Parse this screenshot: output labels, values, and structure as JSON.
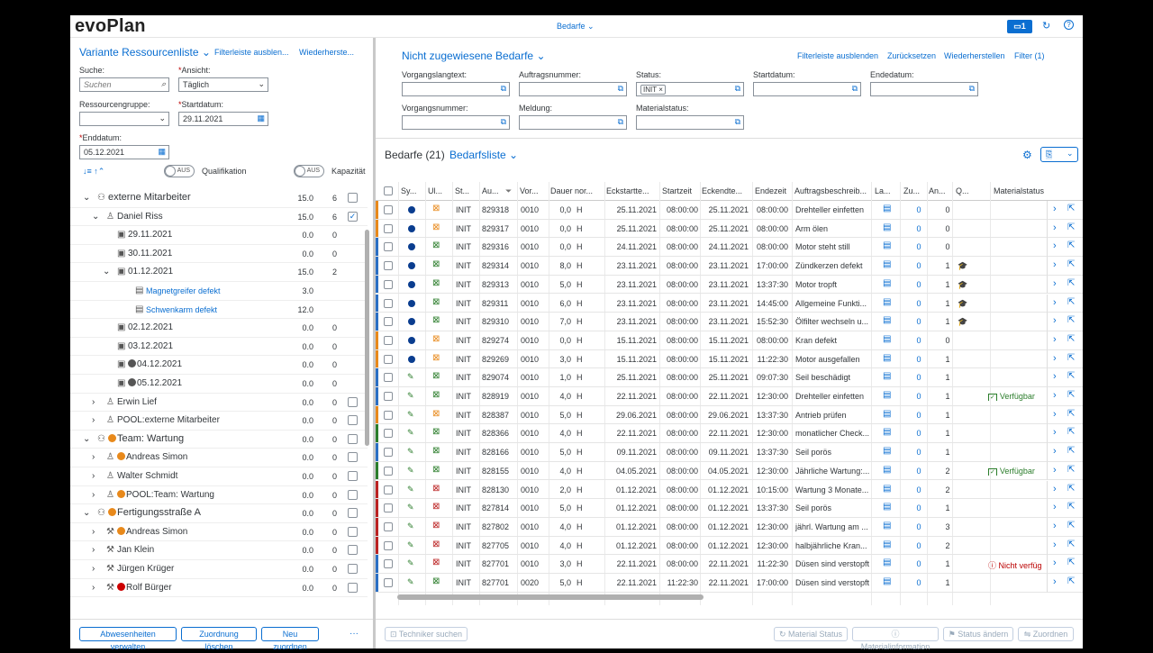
{
  "shell": {
    "logo": "evoPlan",
    "title": "Bedarfe",
    "notif_count": "1",
    "icons": [
      "notification-icon",
      "refresh-icon",
      "help-icon"
    ]
  },
  "left": {
    "variant": "Variante Ressourcenliste",
    "hide_filter": "Filterleiste ausblen...",
    "restore": "Wiederherste...",
    "search_label": "Suche:",
    "search_placeholder": "Suchen",
    "view_label": "Ansicht:",
    "view_value": "Täglich",
    "group_label": "Ressourcengruppe:",
    "group_value": "",
    "start_label": "Startdatum:",
    "start_value": "29.11.2021",
    "end_label": "Enddatum:",
    "end_value": "05.12.2021",
    "toggle_text": "AUS",
    "qual_label": "Qualifikation",
    "kap_label": "Kapazität",
    "tree": [
      {
        "name": "externe Mitarbeiter",
        "v1": "15.0",
        "v2": "6",
        "cb": true,
        "checked": false,
        "level": 0,
        "exp": "⌄",
        "icon": "group"
      },
      {
        "name": "Daniel Riss",
        "v1": "15.0",
        "v2": "6",
        "cb": true,
        "checked": true,
        "level": 1,
        "exp": "⌄",
        "icon": "person"
      },
      {
        "name": "29.11.2021",
        "v1": "0.0",
        "v2": "0",
        "level": 2,
        "icon": "cal"
      },
      {
        "name": "30.11.2021",
        "v1": "0.0",
        "v2": "0",
        "level": 2,
        "icon": "cal"
      },
      {
        "name": "01.12.2021",
        "v1": "15.0",
        "v2": "2",
        "level": 2,
        "exp": "⌄",
        "icon": "cal"
      },
      {
        "name": "Magnetgreifer defekt",
        "v1": "3.0",
        "v2": "",
        "level": 3,
        "icon": "task",
        "link": true
      },
      {
        "name": "Schwenkarm defekt",
        "v1": "12.0",
        "v2": "",
        "level": 3,
        "icon": "task",
        "link": true
      },
      {
        "name": "02.12.2021",
        "v1": "0.0",
        "v2": "0",
        "level": 2,
        "icon": "cal"
      },
      {
        "name": "03.12.2021",
        "v1": "0.0",
        "v2": "0",
        "level": 2,
        "icon": "cal"
      },
      {
        "name": "04.12.2021",
        "v1": "0.0",
        "v2": "0",
        "level": 2,
        "icon": "cal",
        "dot": "#555"
      },
      {
        "name": "05.12.2021",
        "v1": "0.0",
        "v2": "0",
        "level": 2,
        "icon": "cal",
        "dot": "#555"
      },
      {
        "name": "Erwin Lief",
        "v1": "0.0",
        "v2": "0",
        "cb": true,
        "level": 1,
        "exp": "›",
        "icon": "person"
      },
      {
        "name": "POOL:externe Mitarbeiter",
        "v1": "0.0",
        "v2": "0",
        "cb": true,
        "level": 1,
        "exp": "›",
        "icon": "person"
      },
      {
        "name": "Team: Wartung",
        "v1": "0.0",
        "v2": "0",
        "cb": true,
        "level": 0,
        "exp": "⌄",
        "icon": "group",
        "dot": "#e8891b"
      },
      {
        "name": "Andreas Simon",
        "v1": "0.0",
        "v2": "0",
        "cb": true,
        "level": 1,
        "exp": "›",
        "icon": "person",
        "dot": "#e8891b"
      },
      {
        "name": "Walter Schmidt",
        "v1": "0.0",
        "v2": "0",
        "cb": true,
        "level": 1,
        "exp": "›",
        "icon": "person"
      },
      {
        "name": "POOL:Team: Wartung",
        "v1": "0.0",
        "v2": "0",
        "cb": true,
        "level": 1,
        "exp": "›",
        "icon": "person",
        "dot": "#e8891b"
      },
      {
        "name": "Fertigungsstraße A",
        "v1": "0.0",
        "v2": "0",
        "cb": true,
        "level": 0,
        "exp": "⌄",
        "icon": "group",
        "dot": "#e8891b"
      },
      {
        "name": "Andreas Simon",
        "v1": "0.0",
        "v2": "0",
        "cb": true,
        "level": 1,
        "exp": "›",
        "icon": "tool",
        "dot": "#e8891b"
      },
      {
        "name": "Jan Klein",
        "v1": "0.0",
        "v2": "0",
        "cb": true,
        "level": 1,
        "exp": "›",
        "icon": "tool"
      },
      {
        "name": "Jürgen Krüger",
        "v1": "0.0",
        "v2": "0",
        "cb": true,
        "level": 1,
        "exp": "›",
        "icon": "tool"
      },
      {
        "name": "Rolf Bürger",
        "v1": "0.0",
        "v2": "0",
        "cb": true,
        "level": 1,
        "exp": "›",
        "icon": "tool",
        "dot": "#c00"
      }
    ],
    "buttons": {
      "absences": "Abwesenheiten verwalten",
      "delete": "Zuordnung löschen",
      "new": "Neu zuordnen",
      "more": "···"
    }
  },
  "right": {
    "variant": "Nicht zugewiesene Bedarfe",
    "hide_filter": "Filterleiste ausblenden",
    "reset": "Zurücksetzen",
    "restore": "Wiederherstellen",
    "filter": "Filter (1)",
    "f_vtext": "Vorgangslangtext:",
    "f_auftrag": "Auftragsnummer:",
    "f_status": "Status:",
    "f_status_token": "INIT",
    "f_start": "Startdatum:",
    "f_end": "Endedatum:",
    "f_vnum": "Vorgangsnummer:",
    "f_meldung": "Meldung:",
    "f_mstatus": "Materialstatus:",
    "table_title": "Bedarfe (21)",
    "table_variant": "Bedarfsliste",
    "headers": [
      "Sy...",
      "Ul...",
      "St...",
      "Au...",
      "Vor...",
      "Dauer nor...",
      "Eckstartte...",
      "Startzeit",
      "Eckendte...",
      "Endezeit",
      "Auftragsbeschreib...",
      "La...",
      "Zu...",
      "An...",
      "Q...",
      "Materialstatus"
    ],
    "rows": [
      [
        "INIT",
        "829318",
        "0010",
        "0,0",
        "H",
        "25.11.2021",
        "08:00:00",
        "25.11.2021",
        "08:00:00",
        "Drehteller einfetten",
        "0",
        "0",
        "",
        ""
      ],
      [
        "INIT",
        "829317",
        "0010",
        "0,0",
        "H",
        "25.11.2021",
        "08:00:00",
        "25.11.2021",
        "08:00:00",
        "Arm ölen",
        "0",
        "0",
        "",
        ""
      ],
      [
        "INIT",
        "829316",
        "0010",
        "0,0",
        "H",
        "24.11.2021",
        "08:00:00",
        "24.11.2021",
        "08:00:00",
        "Motor steht still",
        "0",
        "0",
        "",
        ""
      ],
      [
        "INIT",
        "829314",
        "0010",
        "8,0",
        "H",
        "23.11.2021",
        "08:00:00",
        "23.11.2021",
        "17:00:00",
        "Zündkerzen defekt",
        "0",
        "1",
        "q",
        ""
      ],
      [
        "INIT",
        "829313",
        "0010",
        "5,0",
        "H",
        "23.11.2021",
        "08:00:00",
        "23.11.2021",
        "13:37:30",
        "Motor tropft",
        "0",
        "1",
        "q",
        ""
      ],
      [
        "INIT",
        "829311",
        "0010",
        "6,0",
        "H",
        "23.11.2021",
        "08:00:00",
        "23.11.2021",
        "14:45:00",
        "Allgemeine Funkti...",
        "0",
        "1",
        "q",
        ""
      ],
      [
        "INIT",
        "829310",
        "0010",
        "7,0",
        "H",
        "23.11.2021",
        "08:00:00",
        "23.11.2021",
        "15:52:30",
        "Ölfilter wechseln u...",
        "0",
        "1",
        "q",
        ""
      ],
      [
        "INIT",
        "829274",
        "0010",
        "0,0",
        "H",
        "15.11.2021",
        "08:00:00",
        "15.11.2021",
        "08:00:00",
        "Kran defekt",
        "0",
        "0",
        "",
        ""
      ],
      [
        "INIT",
        "829269",
        "0010",
        "3,0",
        "H",
        "15.11.2021",
        "08:00:00",
        "15.11.2021",
        "11:22:30",
        "Motor ausgefallen",
        "0",
        "1",
        "",
        ""
      ],
      [
        "INIT",
        "829074",
        "0010",
        "1,0",
        "H",
        "25.11.2021",
        "08:00:00",
        "25.11.2021",
        "09:07:30",
        "Seil beschädigt",
        "0",
        "1",
        "",
        ""
      ],
      [
        "INIT",
        "828919",
        "0010",
        "4,0",
        "H",
        "22.11.2021",
        "08:00:00",
        "22.11.2021",
        "12:30:00",
        "Drehteller einfetten",
        "0",
        "1",
        "",
        "Verfügbar"
      ],
      [
        "INIT",
        "828387",
        "0010",
        "5,0",
        "H",
        "29.06.2021",
        "08:00:00",
        "29.06.2021",
        "13:37:30",
        "Antrieb prüfen",
        "0",
        "1",
        "",
        ""
      ],
      [
        "INIT",
        "828366",
        "0010",
        "4,0",
        "H",
        "22.11.2021",
        "08:00:00",
        "22.11.2021",
        "12:30:00",
        "monatlicher Check...",
        "0",
        "1",
        "",
        ""
      ],
      [
        "INIT",
        "828166",
        "0010",
        "5,0",
        "H",
        "09.11.2021",
        "08:00:00",
        "09.11.2021",
        "13:37:30",
        "Seil porös",
        "0",
        "1",
        "",
        ""
      ],
      [
        "INIT",
        "828155",
        "0010",
        "4,0",
        "H",
        "04.05.2021",
        "08:00:00",
        "04.05.2021",
        "12:30:00",
        "Jährliche Wartung:...",
        "0",
        "2",
        "",
        "Verfügbar"
      ],
      [
        "INIT",
        "828130",
        "0010",
        "2,0",
        "H",
        "01.12.2021",
        "08:00:00",
        "01.12.2021",
        "10:15:00",
        "Wartung 3 Monate...",
        "0",
        "2",
        "",
        ""
      ],
      [
        "INIT",
        "827814",
        "0010",
        "5,0",
        "H",
        "01.12.2021",
        "08:00:00",
        "01.12.2021",
        "13:37:30",
        "Seil porös",
        "0",
        "1",
        "",
        ""
      ],
      [
        "INIT",
        "827802",
        "0010",
        "4,0",
        "H",
        "01.12.2021",
        "08:00:00",
        "01.12.2021",
        "12:30:00",
        "jährl. Wartung am ...",
        "0",
        "3",
        "",
        ""
      ],
      [
        "INIT",
        "827705",
        "0010",
        "4,0",
        "H",
        "01.12.2021",
        "08:00:00",
        "01.12.2021",
        "12:30:00",
        "halbjährliche Kran...",
        "0",
        "2",
        "",
        ""
      ],
      [
        "INIT",
        "827701",
        "0010",
        "3,0",
        "H",
        "22.11.2021",
        "08:00:00",
        "22.11.2021",
        "11:22:30",
        "Düsen sind verstopft",
        "0",
        "1",
        "",
        "Nicht verfüg"
      ],
      [
        "INIT",
        "827701",
        "0020",
        "5,0",
        "H",
        "22.11.2021",
        "11:22:30",
        "22.11.2021",
        "17:00:00",
        "Düsen sind verstopft",
        "0",
        "1",
        "",
        ""
      ]
    ],
    "row_meta": [
      {
        "stripe": "#e8891b",
        "sy": "dot",
        "ul": "#e8891b"
      },
      {
        "stripe": "#e8891b",
        "sy": "dot",
        "ul": "#e8891b"
      },
      {
        "stripe": "#2b6fc4",
        "sy": "dot",
        "ul": "#2b7d2b"
      },
      {
        "stripe": "#2b6fc4",
        "sy": "dot",
        "ul": "#2b7d2b"
      },
      {
        "stripe": "#2b6fc4",
        "sy": "dot",
        "ul": "#2b7d2b"
      },
      {
        "stripe": "#2b6fc4",
        "sy": "dot",
        "ul": "#2b7d2b"
      },
      {
        "stripe": "#2b6fc4",
        "sy": "dot",
        "ul": "#2b7d2b"
      },
      {
        "stripe": "#e8891b",
        "sy": "dot",
        "ul": "#e8891b"
      },
      {
        "stripe": "#e8891b",
        "sy": "dot",
        "ul": "#e8891b"
      },
      {
        "stripe": "#2b6fc4",
        "sy": "edit",
        "ul": "#2b7d2b"
      },
      {
        "stripe": "#2b6fc4",
        "sy": "edit",
        "ul": "#2b7d2b"
      },
      {
        "stripe": "#e8891b",
        "sy": "edit",
        "ul": "#e8891b"
      },
      {
        "stripe": "#2b7d2b",
        "sy": "edit",
        "ul": "#2b7d2b"
      },
      {
        "stripe": "#2b6fc4",
        "sy": "edit",
        "ul": "#2b7d2b"
      },
      {
        "stripe": "#2b7d2b",
        "sy": "edit",
        "ul": "#2b7d2b"
      },
      {
        "stripe": "#b22",
        "sy": "edit",
        "ul": "#b22"
      },
      {
        "stripe": "#b22",
        "sy": "edit",
        "ul": "#b22"
      },
      {
        "stripe": "#b22",
        "sy": "edit",
        "ul": "#b22"
      },
      {
        "stripe": "#b22",
        "sy": "edit",
        "ul": "#b22"
      },
      {
        "stripe": "#2b6fc4",
        "sy": "edit",
        "ul": "#b22"
      },
      {
        "stripe": "#2b6fc4",
        "sy": "edit",
        "ul": "#2b7d2b"
      }
    ],
    "buttons": {
      "tech": "Techniker suchen",
      "mstatus": "Material Status",
      "minfo": "Materialinformation",
      "status": "Status ändern",
      "assign": "Zuordnen"
    }
  }
}
